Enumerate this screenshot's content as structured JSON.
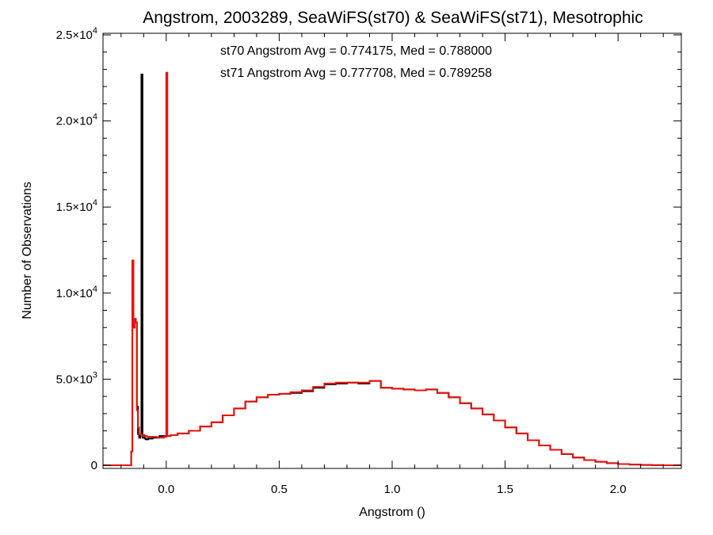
{
  "chart_data": {
    "type": "line",
    "title": "Angstrom, 2003289, SeaWiFS(st70) & SeaWiFS(st71), Mesotrophic",
    "xlabel": "Angstrom ()",
    "ylabel": "Number of Observations",
    "xlim": [
      -0.28,
      2.28
    ],
    "ylim": [
      0,
      25000
    ],
    "x_ticks": [
      {
        "value": 0.0,
        "label": "0.0"
      },
      {
        "value": 0.5,
        "label": "0.5"
      },
      {
        "value": 1.0,
        "label": "1.0"
      },
      {
        "value": 1.5,
        "label": "1.5"
      },
      {
        "value": 2.0,
        "label": "2.0"
      }
    ],
    "y_ticks": [
      {
        "value": 0,
        "mant": "0",
        "exp": ""
      },
      {
        "value": 5000,
        "mant": "5.0×10",
        "exp": "3"
      },
      {
        "value": 10000,
        "mant": "1.0×10",
        "exp": "4"
      },
      {
        "value": 15000,
        "mant": "1.5×10",
        "exp": "4"
      },
      {
        "value": 20000,
        "mant": "2.0×10",
        "exp": "4"
      },
      {
        "value": 25000,
        "mant": "2.5×10",
        "exp": "4"
      }
    ],
    "annotations": [
      {
        "text": "st70 Angstrom Avg = 0.774175, Med = 0.788000",
        "color": "#000000"
      },
      {
        "text": "st71 Angstrom Avg = 0.777708, Med = 0.789258",
        "color": "#e8120c"
      }
    ],
    "series": [
      {
        "color": "#000000",
        "x": [
          -0.28,
          -0.16,
          -0.155,
          -0.15,
          -0.145,
          -0.14,
          -0.135,
          -0.13,
          -0.125,
          -0.12,
          -0.115,
          -0.11,
          -0.105,
          -0.1,
          -0.095,
          -0.09,
          -0.085,
          -0.08,
          -0.07,
          -0.06,
          -0.05,
          -0.04,
          -0.03,
          -0.02,
          -0.01,
          0.0,
          0.02,
          0.05,
          0.1,
          0.15,
          0.2,
          0.25,
          0.3,
          0.35,
          0.4,
          0.45,
          0.5,
          0.55,
          0.6,
          0.65,
          0.7,
          0.75,
          0.8,
          0.85,
          0.9,
          0.95,
          1.0,
          1.05,
          1.1,
          1.15,
          1.2,
          1.25,
          1.3,
          1.35,
          1.4,
          1.45,
          1.5,
          1.55,
          1.6,
          1.65,
          1.7,
          1.75,
          1.8,
          1.85,
          1.9,
          1.95,
          2.0,
          2.05,
          2.1,
          2.15,
          2.2,
          2.28
        ],
        "y": [
          0,
          0,
          800,
          11800,
          8000,
          8500,
          8300,
          3400,
          1800,
          1600,
          1700,
          22700,
          1600,
          1650,
          1550,
          1500,
          1500,
          1550,
          1550,
          1600,
          1600,
          1600,
          1700,
          1700,
          1700,
          1700,
          1750,
          1850,
          2000,
          2250,
          2500,
          2900,
          3300,
          3700,
          3950,
          4100,
          4150,
          4200,
          4300,
          4500,
          4700,
          4750,
          4800,
          4750,
          4900,
          4500,
          4450,
          4400,
          4350,
          4400,
          4200,
          3950,
          3600,
          3300,
          2950,
          2600,
          2200,
          1850,
          1450,
          1150,
          900,
          650,
          450,
          300,
          200,
          120,
          70,
          40,
          15,
          5,
          0,
          0
        ]
      },
      {
        "color": "#e8120c",
        "x": [
          -0.28,
          -0.16,
          -0.155,
          -0.15,
          -0.145,
          -0.14,
          -0.135,
          -0.13,
          -0.125,
          -0.12,
          -0.115,
          -0.11,
          -0.105,
          -0.1,
          -0.095,
          -0.09,
          -0.085,
          -0.08,
          -0.07,
          -0.06,
          -0.05,
          -0.04,
          -0.03,
          -0.02,
          -0.01,
          0.0,
          0.005,
          0.02,
          0.05,
          0.1,
          0.15,
          0.2,
          0.25,
          0.3,
          0.35,
          0.4,
          0.45,
          0.5,
          0.55,
          0.6,
          0.65,
          0.7,
          0.75,
          0.8,
          0.85,
          0.9,
          0.95,
          1.0,
          1.05,
          1.1,
          1.15,
          1.2,
          1.25,
          1.3,
          1.35,
          1.4,
          1.45,
          1.5,
          1.55,
          1.6,
          1.65,
          1.7,
          1.75,
          1.8,
          1.85,
          1.9,
          1.95,
          2.0,
          2.05,
          2.1,
          2.15,
          2.2,
          2.28
        ],
        "y": [
          0,
          0,
          800,
          11900,
          8000,
          8500,
          8300,
          3200,
          2200,
          1800,
          1800,
          1700,
          1700,
          1750,
          1700,
          1700,
          1650,
          1650,
          1650,
          1650,
          1650,
          1600,
          1600,
          1600,
          1650,
          22800,
          1700,
          1750,
          1850,
          2000,
          2250,
          2500,
          2900,
          3300,
          3700,
          3950,
          4100,
          4150,
          4250,
          4350,
          4550,
          4750,
          4800,
          4800,
          4800,
          4900,
          4500,
          4450,
          4400,
          4350,
          4400,
          4200,
          3950,
          3600,
          3300,
          2950,
          2600,
          2200,
          1850,
          1450,
          1150,
          900,
          650,
          450,
          300,
          200,
          120,
          70,
          40,
          15,
          5,
          0,
          0
        ]
      }
    ]
  }
}
